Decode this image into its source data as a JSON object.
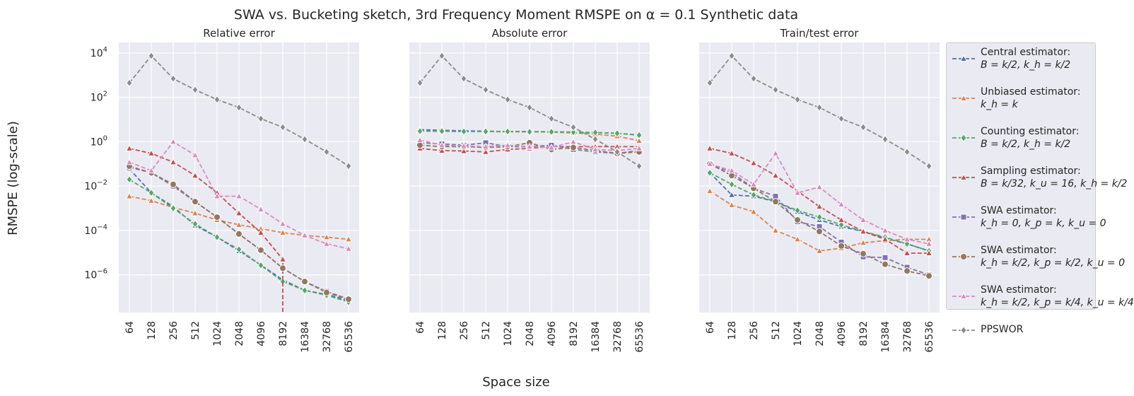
{
  "title": "SWA vs. Bucketing sketch, 3rd Frequency Moment RMSPE on α = 0.1 Synthetic data",
  "ylabel": "RMSPE (log-scale)",
  "xlabel": "Space size",
  "legend": [
    {
      "line1": "Central estimator:",
      "line2": "B = k/2, k_h = k/2",
      "color": "#4c72b0",
      "marker": "triangle"
    },
    {
      "line1": "Unbiased estimator:",
      "line2": "k_h = k",
      "color": "#dd8452",
      "marker": "triangle"
    },
    {
      "line1": "Counting estimator:",
      "line2": "B = k/2, k_h = k/2",
      "color": "#55a868",
      "marker": "diamond"
    },
    {
      "line1": "Sampling estimator:",
      "line2": "B = k/32, k_u = 16, k_h = k/2",
      "color": "#c44e52",
      "marker": "triangle"
    },
    {
      "line1": "SWA estimator:",
      "line2": "k_h = 0, k_p = k, k_u = 0",
      "color": "#8172b3",
      "marker": "square"
    },
    {
      "line1": "SWA estimator:",
      "line2": "k_h = k/2, k_p = k/2, k_u = 0",
      "color": "#937860",
      "marker": "circle"
    },
    {
      "line1": "SWA estimator:",
      "line2": "k_h = k/2, k_p = k/4, k_u = k/4",
      "color": "#da8bc3",
      "marker": "triangle"
    },
    {
      "line1": "PPSWOR",
      "line2": "",
      "color": "#8c8c8c",
      "marker": "diamond"
    }
  ],
  "chart_data": [
    {
      "type": "line",
      "title": "Relative error",
      "categories": [
        "64",
        "128",
        "256",
        "512",
        "1024",
        "2048",
        "4096",
        "8192",
        "16384",
        "32768",
        "65536"
      ],
      "yscale": "log",
      "ylim": [
        2e-08,
        30000.0
      ],
      "yticks": [
        1e-06,
        0.0001,
        0.01,
        1.0,
        100.0,
        10000.0
      ],
      "grid": true,
      "series": [
        {
          "name": "Central estimator",
          "values": [
            0.06,
            0.005,
            0.0012,
            0.00017,
            5e-05,
            1.2e-05,
            2.8e-06,
            6e-07,
            2e-07,
            1.3e-07,
            7e-08
          ]
        },
        {
          "name": "Unbiased estimator",
          "values": [
            0.0035,
            0.0022,
            0.0011,
            0.0006,
            0.0003,
            0.00018,
            0.00012,
            8e-05,
            6e-05,
            5e-05,
            4e-05
          ]
        },
        {
          "name": "Counting estimator",
          "values": [
            0.02,
            0.005,
            0.001,
            0.0002,
            5e-05,
            1.4e-05,
            2.7e-06,
            5e-07,
            2e-07,
            1.2e-07,
            6e-08
          ]
        },
        {
          "name": "Sampling estimator",
          "values": [
            0.5,
            0.3,
            0.12,
            0.03,
            0.005,
            0.0006,
            8e-05,
            5e-06,
            null,
            null,
            null
          ]
        },
        {
          "name": "SWA estimator k_h=0",
          "values": [
            0.07,
            0.04,
            0.01,
            0.002,
            0.0004,
            7e-05,
            1.3e-05,
            2e-06,
            5e-07,
            1.8e-07,
            8e-08
          ]
        },
        {
          "name": "SWA estimator k_h=k/2,k_u=0",
          "values": [
            0.08,
            0.04,
            0.012,
            0.002,
            0.0004,
            7e-05,
            1.3e-05,
            2e-06,
            5e-07,
            1.6e-07,
            8e-08
          ]
        },
        {
          "name": "SWA estimator k_u=k/4",
          "values": [
            0.12,
            0.05,
            1.0,
            0.25,
            0.0035,
            0.0035,
            0.0009,
            0.0002,
            6e-05,
            2.5e-05,
            1.5e-05
          ]
        },
        {
          "name": "PPSWOR",
          "values": [
            450,
            7500,
            700,
            220,
            80,
            35,
            11,
            4.5,
            1.3,
            0.35,
            0.08
          ]
        }
      ]
    },
    {
      "type": "line",
      "title": "Absolute error",
      "categories": [
        "64",
        "128",
        "256",
        "512",
        "1024",
        "2048",
        "4096",
        "8192",
        "16384",
        "32768",
        "65536"
      ],
      "yscale": "log",
      "ylim": [
        2e-08,
        30000.0
      ],
      "grid": true,
      "series": [
        {
          "name": "Central estimator",
          "values": [
            3.5,
            3.3,
            3.1,
            3.0,
            2.9,
            2.9,
            2.8,
            2.7,
            2.6,
            2.4,
            2.0
          ]
        },
        {
          "name": "Unbiased estimator",
          "values": [
            3.0,
            3.0,
            2.9,
            2.9,
            2.8,
            2.8,
            2.7,
            2.5,
            2.2,
            1.8,
            1.1
          ]
        },
        {
          "name": "Counting estimator",
          "values": [
            3.0,
            3.0,
            2.9,
            2.9,
            2.9,
            2.8,
            2.8,
            2.7,
            2.6,
            2.4,
            2.0
          ]
        },
        {
          "name": "Sampling estimator",
          "values": [
            0.5,
            0.4,
            0.38,
            0.35,
            0.45,
            0.5,
            0.6,
            0.6,
            0.6,
            0.6,
            0.6
          ]
        },
        {
          "name": "SWA estimator k_h=0",
          "values": [
            0.9,
            0.8,
            0.7,
            0.9,
            0.6,
            0.6,
            0.7,
            0.45,
            0.35,
            0.3,
            0.4
          ]
        },
        {
          "name": "SWA estimator k_h=k/2,k_u=0",
          "values": [
            0.7,
            0.6,
            0.6,
            0.55,
            0.6,
            0.9,
            0.45,
            0.55,
            0.4,
            0.3,
            0.35
          ]
        },
        {
          "name": "SWA estimator k_u=k/4",
          "values": [
            1.2,
            0.7,
            0.65,
            0.6,
            0.7,
            0.6,
            0.55,
            1.0,
            0.45,
            0.4,
            0.5
          ]
        },
        {
          "name": "PPSWOR",
          "values": [
            450,
            7500,
            700,
            220,
            80,
            35,
            11,
            4.5,
            1.3,
            0.35,
            0.08
          ]
        }
      ]
    },
    {
      "type": "line",
      "title": "Train/test error",
      "categories": [
        "64",
        "128",
        "256",
        "512",
        "1024",
        "2048",
        "4096",
        "8192",
        "16384",
        "32768",
        "65536"
      ],
      "yscale": "log",
      "ylim": [
        2e-08,
        30000.0
      ],
      "grid": true,
      "series": [
        {
          "name": "Central estimator",
          "values": [
            0.04,
            0.004,
            0.0035,
            0.002,
            0.0007,
            0.0003,
            0.00015,
            9e-05,
            4.5e-05,
            2.5e-05,
            1.2e-05
          ]
        },
        {
          "name": "Unbiased estimator",
          "values": [
            0.006,
            0.0014,
            0.0007,
            0.0001,
            4e-05,
            1.2e-05,
            1.6e-05,
            2.8e-05,
            3.5e-05,
            4e-05,
            4e-05
          ]
        },
        {
          "name": "Counting estimator",
          "values": [
            0.04,
            0.012,
            0.004,
            0.002,
            0.0008,
            0.0004,
            0.00018,
            9e-05,
            5e-05,
            2.5e-05,
            1.2e-05
          ]
        },
        {
          "name": "Sampling estimator",
          "values": [
            0.5,
            0.3,
            0.11,
            0.03,
            0.006,
            0.0012,
            0.0003,
            9e-05,
            4e-05,
            9.5e-06,
            9.5e-06
          ]
        },
        {
          "name": "SWA estimator k_h=0",
          "values": [
            0.1,
            0.04,
            0.008,
            0.0035,
            0.00025,
            0.00015,
            3e-05,
            6.5e-06,
            6e-06,
            2.2e-06,
            1e-06
          ]
        },
        {
          "name": "SWA estimator k_h=k/2,k_u=0",
          "values": [
            0.1,
            0.03,
            0.008,
            0.002,
            0.0003,
            9e-05,
            2e-05,
            9e-06,
            3e-06,
            1.5e-06,
            9e-07
          ]
        },
        {
          "name": "SWA estimator k_u=k/4",
          "values": [
            0.1,
            0.05,
            0.012,
            0.3,
            0.005,
            0.009,
            0.0015,
            0.0003,
            0.0001,
            4e-05,
            2.5e-05
          ]
        },
        {
          "name": "PPSWOR",
          "values": [
            450,
            7500,
            700,
            220,
            80,
            35,
            11,
            4.5,
            1.3,
            0.35,
            0.08
          ]
        }
      ]
    }
  ]
}
